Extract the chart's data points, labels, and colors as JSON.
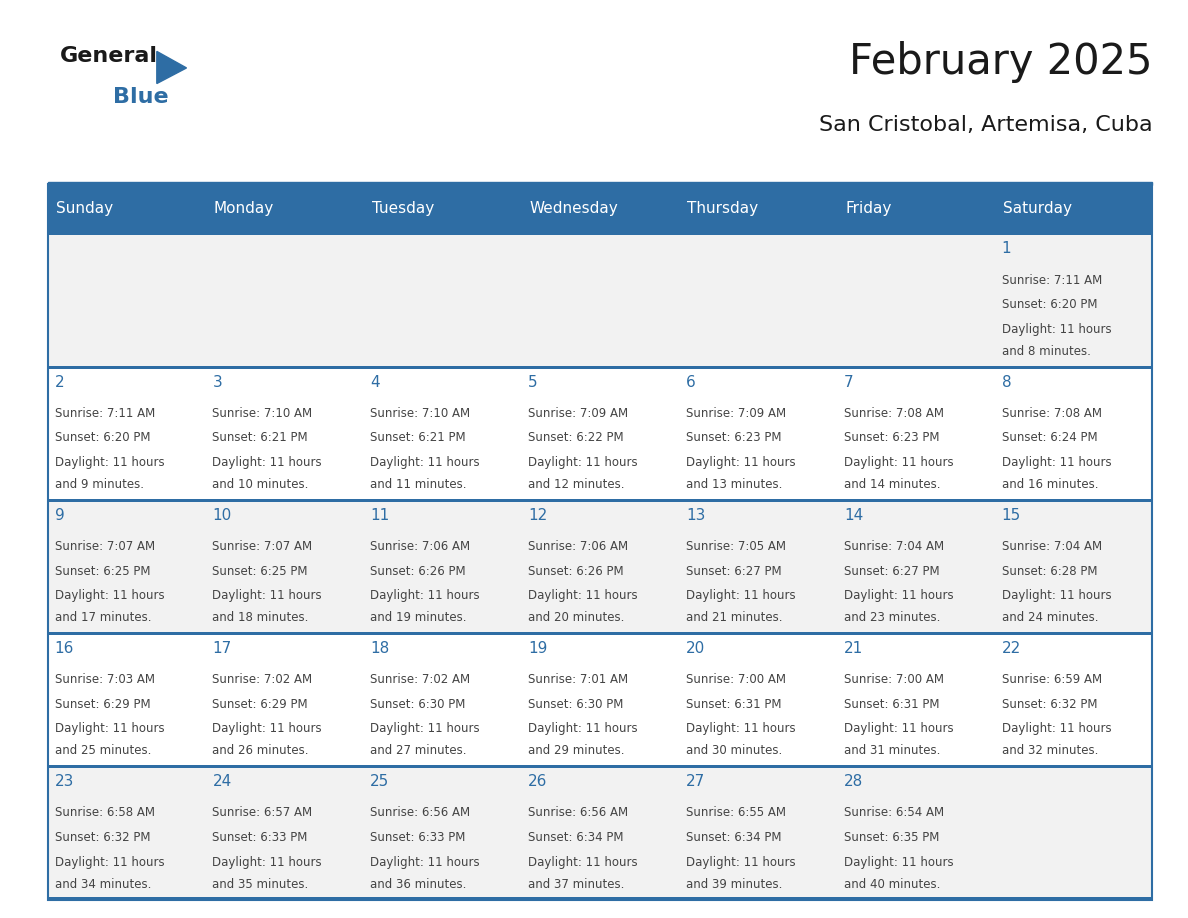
{
  "title": "February 2025",
  "subtitle": "San Cristobal, Artemisa, Cuba",
  "header_bg": "#2E6DA4",
  "header_text_color": "#FFFFFF",
  "day_names": [
    "Sunday",
    "Monday",
    "Tuesday",
    "Wednesday",
    "Thursday",
    "Friday",
    "Saturday"
  ],
  "bg_color": "#FFFFFF",
  "cell_bg_even": "#F2F2F2",
  "cell_bg_odd": "#FFFFFF",
  "cell_border_color": "#2E6DA4",
  "day_number_color": "#2E6DA4",
  "text_color": "#444444",
  "logo_general_color": "#1A1A1A",
  "logo_blue_color": "#2E6DA4",
  "calendar_data": [
    [
      null,
      null,
      null,
      null,
      null,
      null,
      1
    ],
    [
      2,
      3,
      4,
      5,
      6,
      7,
      8
    ],
    [
      9,
      10,
      11,
      12,
      13,
      14,
      15
    ],
    [
      16,
      17,
      18,
      19,
      20,
      21,
      22
    ],
    [
      23,
      24,
      25,
      26,
      27,
      28,
      null
    ]
  ],
  "sunrise_data": {
    "1": "7:11 AM",
    "2": "7:11 AM",
    "3": "7:10 AM",
    "4": "7:10 AM",
    "5": "7:09 AM",
    "6": "7:09 AM",
    "7": "7:08 AM",
    "8": "7:08 AM",
    "9": "7:07 AM",
    "10": "7:07 AM",
    "11": "7:06 AM",
    "12": "7:06 AM",
    "13": "7:05 AM",
    "14": "7:04 AM",
    "15": "7:04 AM",
    "16": "7:03 AM",
    "17": "7:02 AM",
    "18": "7:02 AM",
    "19": "7:01 AM",
    "20": "7:00 AM",
    "21": "7:00 AM",
    "22": "6:59 AM",
    "23": "6:58 AM",
    "24": "6:57 AM",
    "25": "6:56 AM",
    "26": "6:56 AM",
    "27": "6:55 AM",
    "28": "6:54 AM"
  },
  "sunset_data": {
    "1": "6:20 PM",
    "2": "6:20 PM",
    "3": "6:21 PM",
    "4": "6:21 PM",
    "5": "6:22 PM",
    "6": "6:23 PM",
    "7": "6:23 PM",
    "8": "6:24 PM",
    "9": "6:25 PM",
    "10": "6:25 PM",
    "11": "6:26 PM",
    "12": "6:26 PM",
    "13": "6:27 PM",
    "14": "6:27 PM",
    "15": "6:28 PM",
    "16": "6:29 PM",
    "17": "6:29 PM",
    "18": "6:30 PM",
    "19": "6:30 PM",
    "20": "6:31 PM",
    "21": "6:31 PM",
    "22": "6:32 PM",
    "23": "6:32 PM",
    "24": "6:33 PM",
    "25": "6:33 PM",
    "26": "6:34 PM",
    "27": "6:34 PM",
    "28": "6:35 PM"
  },
  "daylight_data": {
    "1": "11 hours and 8 minutes.",
    "2": "11 hours and 9 minutes.",
    "3": "11 hours and 10 minutes.",
    "4": "11 hours and 11 minutes.",
    "5": "11 hours and 12 minutes.",
    "6": "11 hours and 13 minutes.",
    "7": "11 hours and 14 minutes.",
    "8": "11 hours and 16 minutes.",
    "9": "11 hours and 17 minutes.",
    "10": "11 hours and 18 minutes.",
    "11": "11 hours and 19 minutes.",
    "12": "11 hours and 20 minutes.",
    "13": "11 hours and 21 minutes.",
    "14": "11 hours and 23 minutes.",
    "15": "11 hours and 24 minutes.",
    "16": "11 hours and 25 minutes.",
    "17": "11 hours and 26 minutes.",
    "18": "11 hours and 27 minutes.",
    "19": "11 hours and 29 minutes.",
    "20": "11 hours and 30 minutes.",
    "21": "11 hours and 31 minutes.",
    "22": "11 hours and 32 minutes.",
    "23": "11 hours and 34 minutes.",
    "24": "11 hours and 35 minutes.",
    "25": "11 hours and 36 minutes.",
    "26": "11 hours and 37 minutes.",
    "27": "11 hours and 39 minutes.",
    "28": "11 hours and 40 minutes."
  }
}
